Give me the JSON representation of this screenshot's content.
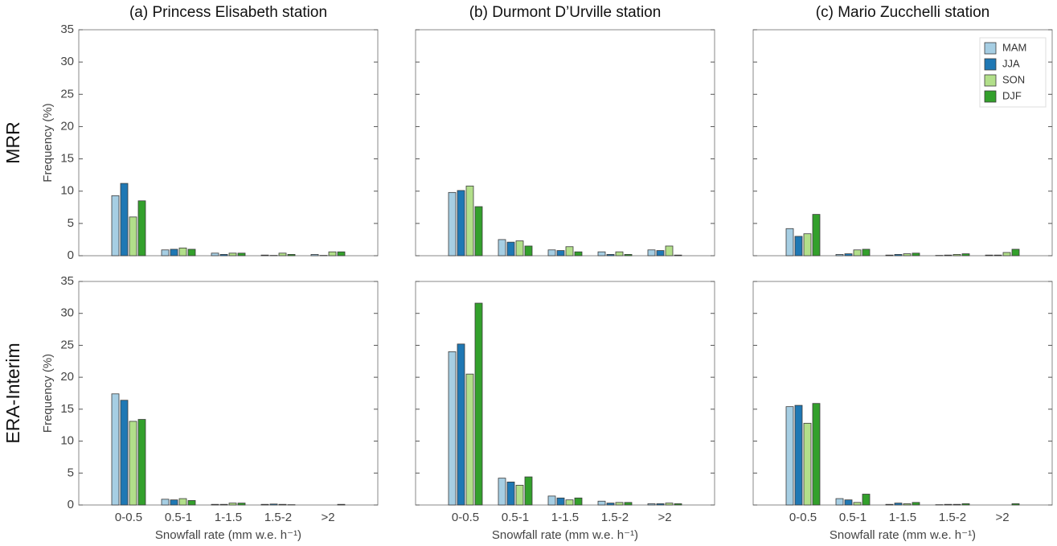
{
  "chart_data": [
    {
      "type": "bar",
      "title": "(a) Princess Elisabeth station",
      "row_label": "MRR",
      "ylabel": "Frequency (%)",
      "ylim": [
        0,
        35
      ],
      "yticks": [
        0,
        5,
        10,
        15,
        20,
        25,
        30,
        35
      ],
      "show_ytick_labels": true,
      "series": [
        {
          "color": "#a6cee3",
          "values": [
            9.3,
            0.9,
            0.4,
            0.1,
            0.2
          ]
        },
        {
          "color": "#1f78b4",
          "values": [
            11.2,
            1.0,
            0.2,
            0.05,
            0.05
          ]
        },
        {
          "color": "#b2df8a",
          "values": [
            6.0,
            1.2,
            0.4,
            0.4,
            0.6
          ]
        },
        {
          "color": "#33a02c",
          "values": [
            8.5,
            1.0,
            0.4,
            0.2,
            0.6
          ]
        }
      ]
    },
    {
      "type": "bar",
      "title": "(b) Durmont D’Urville station",
      "ylim": [
        0,
        35
      ],
      "yticks": [
        0,
        5,
        10,
        15,
        20,
        25,
        30,
        35
      ],
      "show_ytick_labels": false,
      "series": [
        {
          "color": "#a6cee3",
          "values": [
            9.8,
            2.5,
            0.9,
            0.6,
            0.9
          ]
        },
        {
          "color": "#1f78b4",
          "values": [
            10.1,
            2.1,
            0.8,
            0.2,
            0.8
          ]
        },
        {
          "color": "#b2df8a",
          "values": [
            10.8,
            2.3,
            1.4,
            0.6,
            1.5
          ]
        },
        {
          "color": "#33a02c",
          "values": [
            7.6,
            1.5,
            0.6,
            0.2,
            0.1
          ]
        }
      ]
    },
    {
      "type": "bar",
      "title": "(c) Mario Zucchelli station",
      "legend": "upper right",
      "ylim": [
        0,
        35
      ],
      "yticks": [
        0,
        5,
        10,
        15,
        20,
        25,
        30,
        35
      ],
      "show_ytick_labels": false,
      "series": [
        {
          "name": "MAM",
          "color": "#a6cee3",
          "values": [
            4.2,
            0.2,
            0.1,
            0.05,
            0.1
          ]
        },
        {
          "name": "JJA",
          "color": "#1f78b4",
          "values": [
            3.0,
            0.3,
            0.2,
            0.1,
            0.1
          ]
        },
        {
          "name": "SON",
          "color": "#b2df8a",
          "values": [
            3.4,
            0.9,
            0.3,
            0.2,
            0.5
          ]
        },
        {
          "name": "DJF",
          "color": "#33a02c",
          "values": [
            6.4,
            1.0,
            0.4,
            0.3,
            1.0
          ]
        }
      ]
    },
    {
      "type": "bar",
      "row_label": "ERA-Interim",
      "ylabel": "Frequency (%)",
      "xlabel": "Snowfall rate (mm w.e. h⁻¹)",
      "categories": [
        "0-0.5",
        "0.5-1",
        "1-1.5",
        "1.5-2",
        ">2"
      ],
      "ylim": [
        0,
        35
      ],
      "yticks": [
        0,
        5,
        10,
        15,
        20,
        25,
        30,
        35
      ],
      "show_ytick_labels": true,
      "series": [
        {
          "color": "#a6cee3",
          "values": [
            17.4,
            0.9,
            0.1,
            0.1,
            0
          ]
        },
        {
          "color": "#1f78b4",
          "values": [
            16.4,
            0.8,
            0.1,
            0.15,
            0
          ]
        },
        {
          "color": "#b2df8a",
          "values": [
            13.1,
            1.0,
            0.3,
            0.1,
            0
          ]
        },
        {
          "color": "#33a02c",
          "values": [
            13.4,
            0.7,
            0.3,
            0.05,
            0.1
          ]
        }
      ]
    },
    {
      "type": "bar",
      "xlabel": "Snowfall rate (mm w.e. h⁻¹)",
      "categories": [
        "0-0.5",
        "0.5-1",
        "1-1.5",
        "1.5-2",
        ">2"
      ],
      "ylim": [
        0,
        35
      ],
      "yticks": [
        0,
        5,
        10,
        15,
        20,
        25,
        30,
        35
      ],
      "show_ytick_labels": false,
      "series": [
        {
          "color": "#a6cee3",
          "values": [
            24.0,
            4.2,
            1.4,
            0.6,
            0.2
          ]
        },
        {
          "color": "#1f78b4",
          "values": [
            25.2,
            3.6,
            1.1,
            0.3,
            0.2
          ]
        },
        {
          "color": "#b2df8a",
          "values": [
            20.5,
            3.1,
            0.8,
            0.4,
            0.3
          ]
        },
        {
          "color": "#33a02c",
          "values": [
            31.6,
            4.4,
            1.1,
            0.4,
            0.2
          ]
        }
      ]
    },
    {
      "type": "bar",
      "xlabel": "Snowfall rate (mm w.e. h⁻¹)",
      "categories": [
        "0-0.5",
        "0.5-1",
        "1-1.5",
        "1.5-2",
        ">2"
      ],
      "ylim": [
        0,
        35
      ],
      "yticks": [
        0,
        5,
        10,
        15,
        20,
        25,
        30,
        35
      ],
      "show_ytick_labels": false,
      "series": [
        {
          "color": "#a6cee3",
          "values": [
            15.4,
            1.0,
            0.1,
            0.05,
            0
          ]
        },
        {
          "color": "#1f78b4",
          "values": [
            15.6,
            0.8,
            0.3,
            0.1,
            0
          ]
        },
        {
          "color": "#b2df8a",
          "values": [
            12.8,
            0.4,
            0.2,
            0.1,
            0
          ]
        },
        {
          "color": "#33a02c",
          "values": [
            15.9,
            1.7,
            0.4,
            0.2,
            0.2
          ]
        }
      ]
    }
  ]
}
